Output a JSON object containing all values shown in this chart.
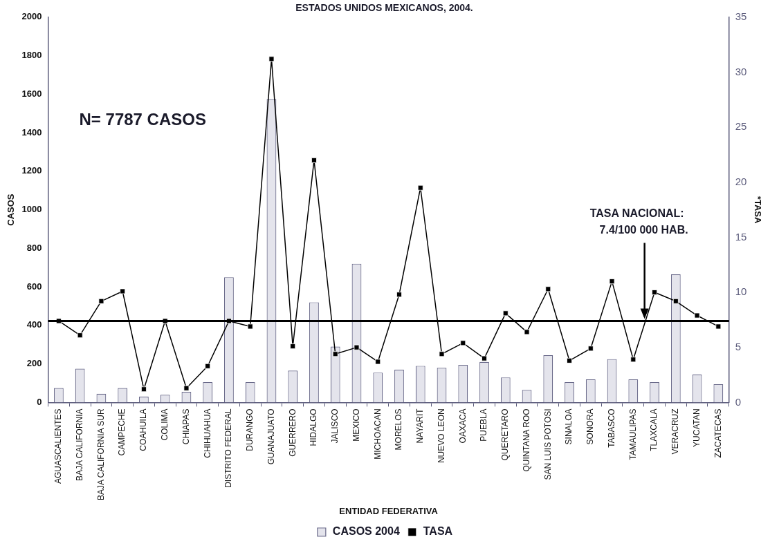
{
  "chart_data": {
    "type": "bar",
    "title": "ESTADOS UNIDOS MEXICANOS, 2004.",
    "xlabel": "ENTIDAD FEDERATIVA",
    "ylabel": "CASOS",
    "y2label": "*TASA",
    "categories": [
      "AGUASCALIENTES",
      "BAJA CALIFORNIA",
      "BAJA CALIFORNIA SUR",
      "CAMPECHE",
      "COAHUILA",
      "COLIMA",
      "CHIAPAS",
      "CHIHUAHUA",
      "DISTRITO FEDERAL",
      "DURANGO",
      "GUANAJUATO",
      "GUERRERO",
      "HIDALGO",
      "JALISCO",
      "MEXICO",
      "MICHOACAN",
      "MORELOS",
      "NAYARIT",
      "NUEVO LEON",
      "OAXACA",
      "PUEBLA",
      "QUERETARO",
      "QUINTANA ROO",
      "SAN LUIS POTOSI",
      "SINALOA",
      "SONORA",
      "TABASCO",
      "TAMAULIPAS",
      "TLAXCALA",
      "VERACRUZ",
      "YUCATAN",
      "ZACATECAS"
    ],
    "series": [
      {
        "name": "CASOS 2004",
        "color": "#e4e4ec",
        "values": [
          75,
          175,
          45,
          75,
          30,
          40,
          55,
          105,
          650,
          105,
          1575,
          165,
          520,
          290,
          720,
          155,
          170,
          190,
          180,
          195,
          210,
          130,
          65,
          245,
          105,
          120,
          225,
          120,
          105,
          665,
          145,
          95
        ]
      },
      {
        "name": "TASA",
        "type": "line",
        "axis": "y2",
        "color": "#000000",
        "marker": "square",
        "values": [
          7.4,
          6.1,
          9.2,
          10.1,
          1.2,
          7.4,
          1.3,
          3.3,
          7.4,
          6.9,
          31.2,
          5.1,
          22.0,
          4.4,
          5.0,
          3.7,
          9.8,
          19.5,
          4.4,
          5.4,
          4.0,
          8.1,
          6.4,
          10.3,
          3.8,
          4.9,
          11.0,
          3.9,
          10.0,
          9.2,
          7.9,
          6.9
        ]
      }
    ],
    "ylim": [
      0,
      2000
    ],
    "yticks": [
      0,
      200,
      400,
      600,
      800,
      1000,
      1200,
      1400,
      1600,
      1800,
      2000
    ],
    "y2lim": [
      0,
      35
    ],
    "y2ticks": [
      0,
      5,
      10,
      15,
      20,
      25,
      30,
      35
    ],
    "ref_lines": [
      {
        "axis": "y2",
        "value": 7.4,
        "label": "TASA NACIONAL: 7.4/100 000 HAB.",
        "color": "#000000"
      }
    ],
    "annotations": [
      "N= 7787 CASOS"
    ],
    "legend": "bottom"
  }
}
